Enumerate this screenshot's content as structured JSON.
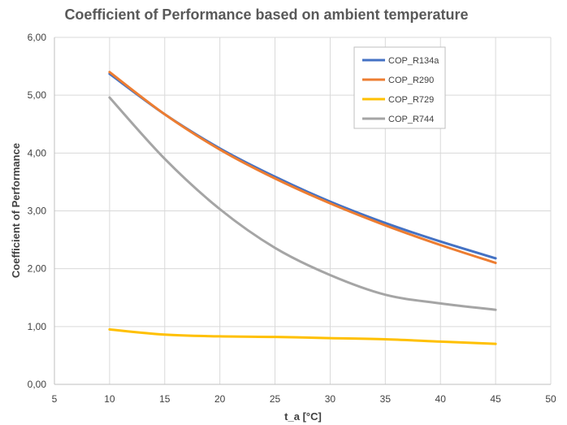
{
  "chart_data": {
    "type": "line",
    "title": "Coefficient of Performance based on ambient temperature",
    "xlabel": "t_a [°C]",
    "ylabel": "Coefficient of Performance",
    "xlim": [
      5,
      50
    ],
    "ylim": [
      0,
      6
    ],
    "x_ticks": [
      "5",
      "10",
      "15",
      "20",
      "25",
      "30",
      "35",
      "40",
      "45",
      "50"
    ],
    "y_ticks": [
      "0,00",
      "1,00",
      "2,00",
      "3,00",
      "4,00",
      "5,00",
      "6,00"
    ],
    "grid": true,
    "legend_position": "top-right",
    "x": [
      10,
      15,
      20,
      25,
      30,
      35,
      40,
      45
    ],
    "series": [
      {
        "name": "COP_R134a",
        "color": "#4472C4",
        "values": [
          5.37,
          4.67,
          4.08,
          3.59,
          3.16,
          2.79,
          2.47,
          2.18
        ]
      },
      {
        "name": "COP_R290",
        "color": "#ED7D31",
        "values": [
          5.4,
          4.67,
          4.06,
          3.56,
          3.13,
          2.75,
          2.41,
          2.1
        ]
      },
      {
        "name": "COP_R729",
        "color": "#FFC000",
        "values": [
          0.95,
          0.86,
          0.83,
          0.82,
          0.8,
          0.78,
          0.74,
          0.7
        ]
      },
      {
        "name": "COP_R744",
        "color": "#A5A5A5",
        "values": [
          4.96,
          3.9,
          3.03,
          2.36,
          1.89,
          1.55,
          1.4,
          1.29
        ]
      }
    ]
  }
}
